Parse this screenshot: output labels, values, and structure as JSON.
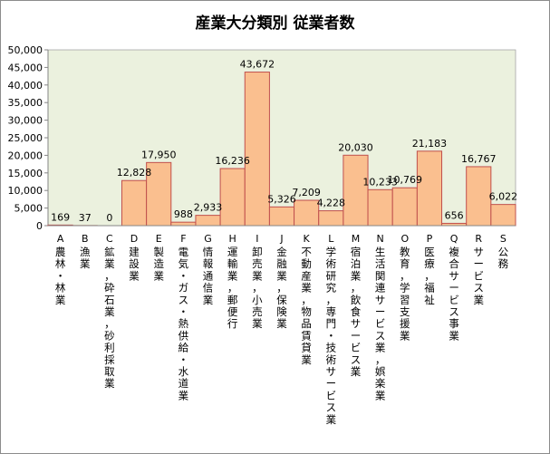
{
  "chart_data": {
    "type": "bar",
    "title": "産業大分類別 従業者数",
    "xlabel": "",
    "ylabel": "",
    "ylim": [
      0,
      50000
    ],
    "yticks": [
      0,
      5000,
      10000,
      15000,
      20000,
      25000,
      30000,
      35000,
      40000,
      45000,
      50000
    ],
    "ytick_labels": [
      "0",
      "5,000",
      "10,000",
      "15,000",
      "20,000",
      "25,000",
      "30,000",
      "35,000",
      "40,000",
      "45,000",
      "50,000"
    ],
    "grid": false,
    "legend": "none",
    "categories": [
      {
        "letter": "A",
        "name": "農林・林業"
      },
      {
        "letter": "B",
        "name": "漁業"
      },
      {
        "letter": "C",
        "name": "鉱業，砕石業，砂利採取業"
      },
      {
        "letter": "D",
        "name": "建設業"
      },
      {
        "letter": "E",
        "name": "製造業"
      },
      {
        "letter": "F",
        "name": "電気・ガス・熱供給・水道業"
      },
      {
        "letter": "G",
        "name": "情報通信業"
      },
      {
        "letter": "H",
        "name": "運輸業，郵便行"
      },
      {
        "letter": "I",
        "name": "卸売業，小売業"
      },
      {
        "letter": "J",
        "name": "金融業，保険業"
      },
      {
        "letter": "K",
        "name": "不動産業，物品賃貸業"
      },
      {
        "letter": "L",
        "name": "学術研究，専門・技術サービス業"
      },
      {
        "letter": "M",
        "name": "宿泊業，飲食サービス業"
      },
      {
        "letter": "N",
        "name": "生活関連サービス業，娯楽業"
      },
      {
        "letter": "O",
        "name": "教育，学習支援業"
      },
      {
        "letter": "P",
        "name": "医療，福祉"
      },
      {
        "letter": "Q",
        "name": "複合サービス事業"
      },
      {
        "letter": "R",
        "name": "サービス業"
      },
      {
        "letter": "S",
        "name": "公務"
      }
    ],
    "values": [
      169,
      37,
      0,
      12828,
      17950,
      988,
      2933,
      16236,
      43672,
      5326,
      7209,
      4228,
      20030,
      10233,
      10769,
      21183,
      656,
      16767,
      6022
    ],
    "value_labels": [
      "169",
      "37",
      "0",
      "12,828",
      "17,950",
      "988",
      "2,933",
      "16,236",
      "43,672",
      "5,326",
      "7,209",
      "4,228",
      "20,030",
      "10,233",
      "10,769",
      "21,183",
      "656",
      "16,767",
      "6,022"
    ],
    "colors": {
      "plot_background": "#ebf1de",
      "bar_fill": "#fabf8f",
      "bar_stroke": "#c0504d"
    }
  }
}
